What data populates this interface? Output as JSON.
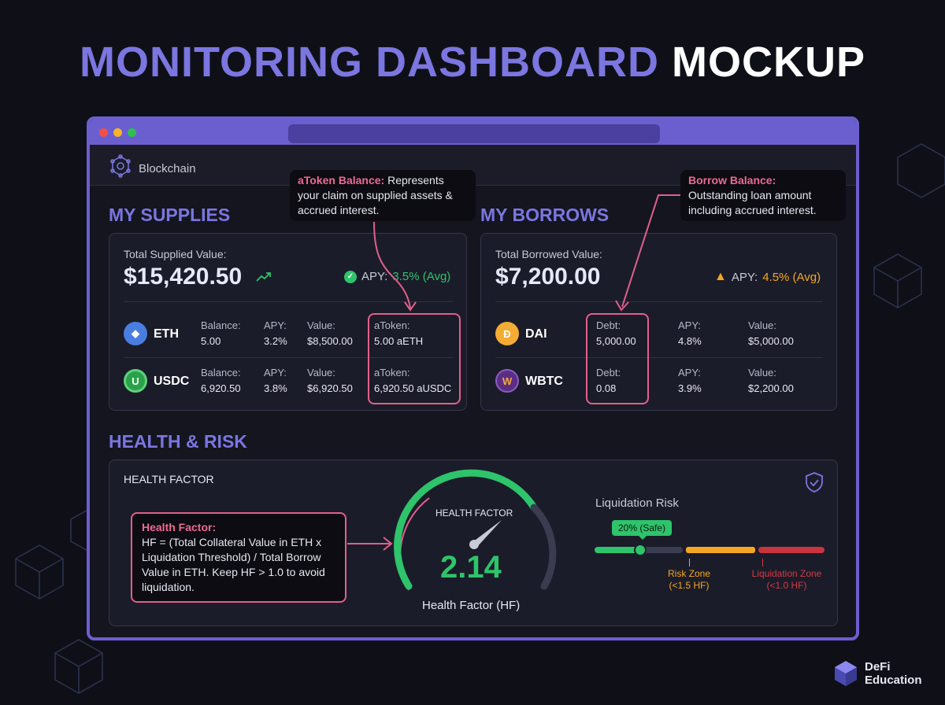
{
  "title": {
    "part1": "MONITORING DASHBOARD",
    "part2": "MOCKUP"
  },
  "header": {
    "brand": "Blockchain"
  },
  "supplies": {
    "heading": "MY SUPPLIES",
    "total_label": "Total Supplied Value:",
    "total": "$15,420.50",
    "apy_label": "APY:",
    "apy": "3.5% (Avg)",
    "rows": [
      {
        "symbol": "ETH",
        "balance_label": "Balance:",
        "balance": "5.00",
        "apy_label": "APY:",
        "apy": "3.2%",
        "value_label": "Value:",
        "value": "$8,500.00",
        "atoken_label": "aToken:",
        "atoken": "5.00 aETH"
      },
      {
        "symbol": "USDC",
        "balance_label": "Balance:",
        "balance": "6,920.50",
        "apy_label": "APY:",
        "apy": "3.8%",
        "value_label": "Value:",
        "value": "$6,920.50",
        "atoken_label": "aToken:",
        "atoken": "6,920.50 aUSDC"
      }
    ]
  },
  "borrows": {
    "heading": "MY BORROWS",
    "total_label": "Total Borrowed Value:",
    "total": "$7,200.00",
    "apy_label": "APY:",
    "apy": "4.5% (Avg)",
    "rows": [
      {
        "symbol": "DAI",
        "debt_label": "Debt:",
        "debt": "5,000.00",
        "apy_label": "APY:",
        "apy": "4.8%",
        "value_label": "Value:",
        "value": "$5,000.00"
      },
      {
        "symbol": "WBTC",
        "icon": "W",
        "debt_label": "Debt:",
        "debt": "0.08",
        "apy_label": "APY:",
        "apy": "3.9%",
        "value_label": "Value:",
        "value": "$2,200.00"
      }
    ]
  },
  "tips": {
    "atoken_title": "aToken Balance:",
    "atoken_text": "Represents your claim on supplied assets & accrued interest.",
    "borrow_title": "Borrow Balance:",
    "borrow_text": "Outstanding loan amount including accrued interest.",
    "hf_title": "Health Factor:",
    "hf_text": "HF = (Total Collateral Value in ETH x Liquidation Threshold) / Total Borrow Value in ETH. Keep HF > 1.0 to avoid liquidation."
  },
  "health": {
    "heading": "HEALTH & RISK",
    "card_title": "HEALTH FACTOR",
    "gauge_label": "HEALTH FACTOR",
    "value": "2.14",
    "caption": "Health Factor (HF)",
    "risk_title": "Liquidation Risk",
    "risk_percent": 20,
    "risk_badge": "20% (Safe)",
    "risk_zone": "Risk Zone",
    "risk_zone_sub": "(<1.5 HF)",
    "liq_zone": "Liquidation Zone",
    "liq_zone_sub": "(<1.0 HF)"
  },
  "footer": {
    "line1": "DeFi",
    "line2": "Education"
  },
  "colors": {
    "accent": "#7b76e0",
    "green": "#2ec46b",
    "orange": "#f5a623",
    "red": "#d33a44",
    "pink": "#ee6a92"
  }
}
